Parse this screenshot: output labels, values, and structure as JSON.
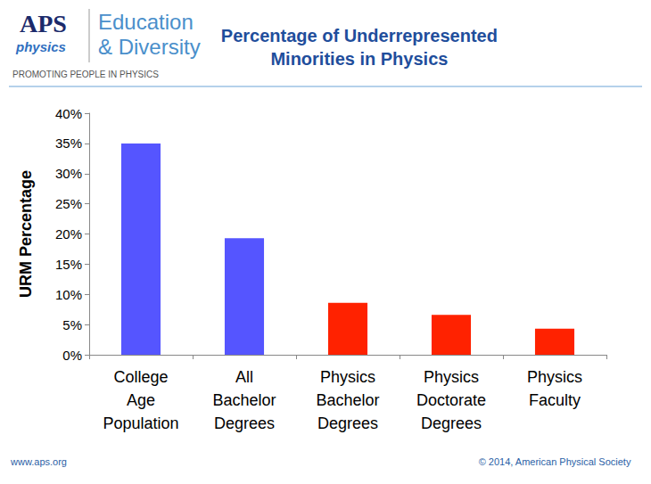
{
  "chart_data": {
    "type": "bar",
    "title": "Percentage of Underrepresented\nMinorities in Physics",
    "y_label": "URM Percentage",
    "categories": [
      "College\nAge\nPopulation",
      "All\nBachelor\nDegrees",
      "Physics\nBachelor\nDegrees",
      "Physics\nDoctorate\nDegrees",
      "Physics\nFaculty"
    ],
    "values": [
      35,
      19.3,
      8.6,
      6.6,
      4.3
    ],
    "colors": [
      "#5555ff",
      "#5555ff",
      "#ff2200",
      "#ff2200",
      "#ff2200"
    ],
    "ylim": [
      0,
      40
    ],
    "yticks": [
      {
        "value": 0,
        "label": "0%"
      },
      {
        "value": 5,
        "label": "5%"
      },
      {
        "value": 10,
        "label": "10%"
      },
      {
        "value": 15,
        "label": "15%"
      },
      {
        "value": 20,
        "label": "20%"
      },
      {
        "value": 25,
        "label": "25%"
      },
      {
        "value": 30,
        "label": "30%"
      },
      {
        "value": 35,
        "label": "35%"
      },
      {
        "value": 40,
        "label": "40%"
      }
    ],
    "grid": false,
    "data_labels": false,
    "annotations": [
      "APS",
      "physics",
      "Education",
      "& Diversity",
      "PROMOTING PEOPLE IN PHYSICS",
      "www.aps.org",
      "© 2014, American Physical Society"
    ]
  }
}
